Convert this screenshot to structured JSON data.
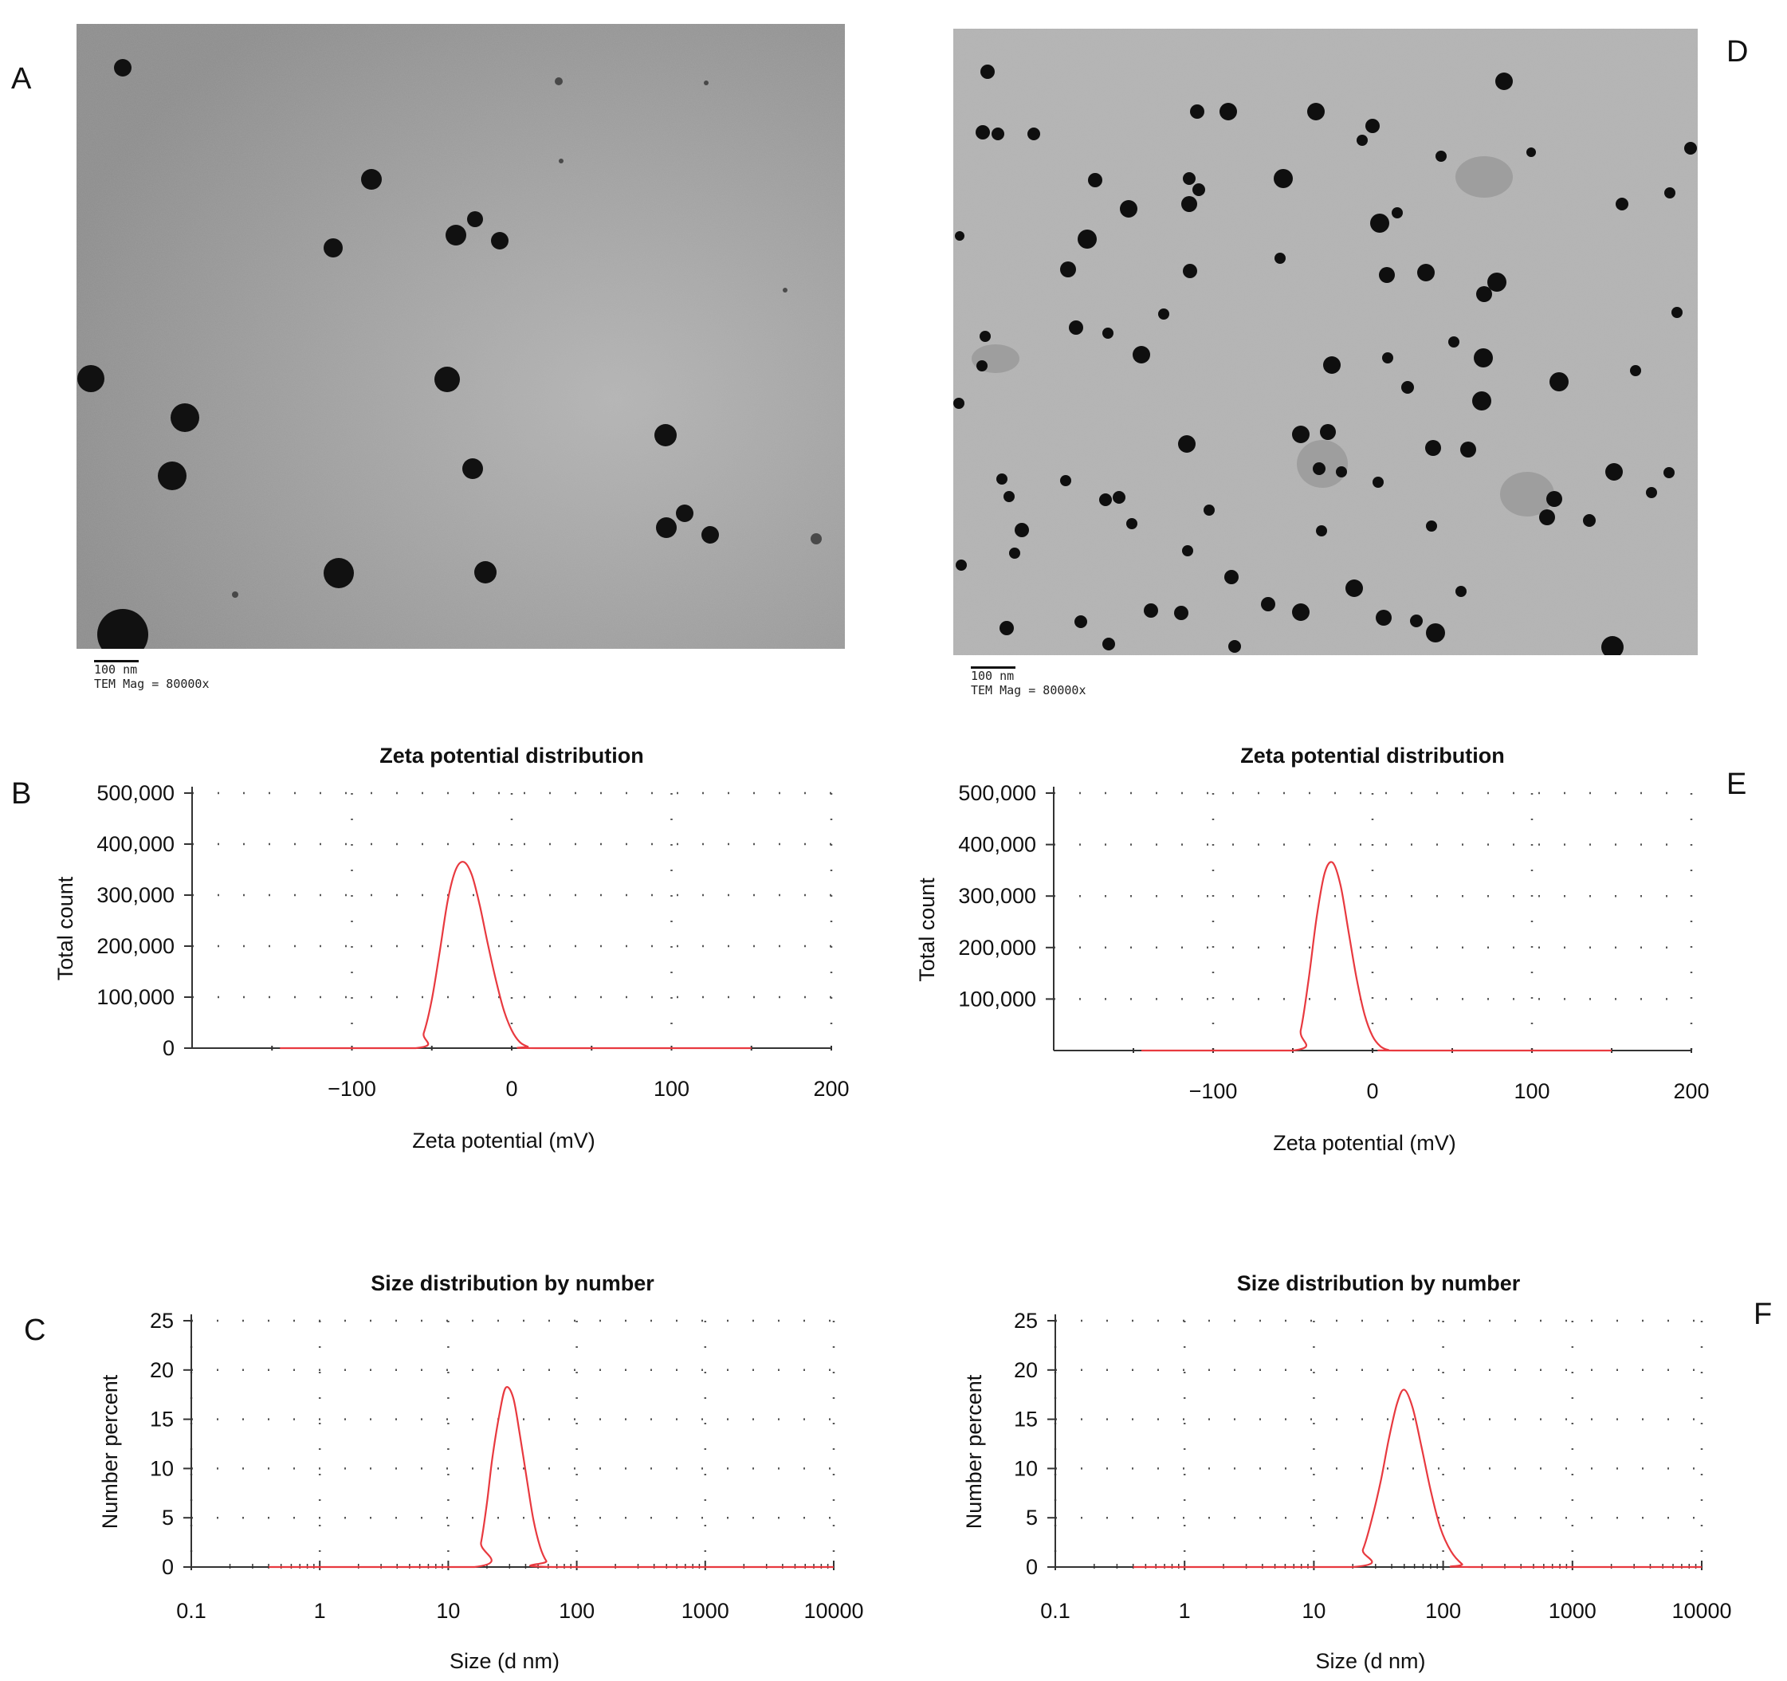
{
  "panels": {
    "A": {
      "letter": "A",
      "scalebar": "100 nm",
      "mag": "TEM Mag =  80000x"
    },
    "D": {
      "letter": "D",
      "scalebar": "100 nm",
      "mag": "TEM Mag =  80000x"
    },
    "B": {
      "letter": "B"
    },
    "E": {
      "letter": "E"
    },
    "C": {
      "letter": "C"
    },
    "F": {
      "letter": "F"
    }
  },
  "colors": {
    "curve": "#e8393f",
    "axis": "#333333",
    "grid": "#555555"
  },
  "chart_data": [
    {
      "id": "B",
      "type": "line",
      "title": "Zeta potential distribution",
      "xlabel": "Zeta potential (mV)",
      "ylabel": "Total count",
      "xlim": [
        -200,
        200
      ],
      "ylim": [
        0,
        500000
      ],
      "xticks": [
        -100,
        0,
        100,
        200
      ],
      "xtick_labels": [
        "−100",
        "0",
        "100",
        "200"
      ],
      "yticks": [
        0,
        100000,
        200000,
        300000,
        400000,
        500000
      ],
      "ytick_labels": [
        "0",
        "100,000",
        "200,000",
        "300,000",
        "400,000",
        "500,000"
      ],
      "grid": true,
      "series": [
        {
          "x": [
            -145,
            -60,
            -55,
            -50,
            -45,
            -40,
            -35,
            -30,
            -25,
            -20,
            -15,
            -10,
            -5,
            0,
            5,
            10,
            15,
            150
          ],
          "y": [
            0,
            0,
            30000,
            95000,
            190000,
            290000,
            350000,
            365000,
            340000,
            280000,
            205000,
            135000,
            75000,
            35000,
            12000,
            3000,
            0,
            0
          ]
        }
      ]
    },
    {
      "id": "E",
      "type": "line",
      "title": "Zeta potential distribution",
      "xlabel": "Zeta potential (mV)",
      "ylabel": "Total count",
      "xlim": [
        -200,
        200
      ],
      "ylim": [
        0,
        500000
      ],
      "xticks": [
        -100,
        0,
        100,
        200
      ],
      "xtick_labels": [
        "−100",
        "0",
        "100",
        "200"
      ],
      "yticks": [
        100000,
        200000,
        300000,
        400000,
        500000
      ],
      "ytick_labels": [
        "100,000",
        "200,000",
        "300,000",
        "400,000",
        "500,000"
      ],
      "grid": true,
      "series": [
        {
          "x": [
            -145,
            -50,
            -45,
            -40,
            -35,
            -30,
            -25,
            -20,
            -15,
            -10,
            -5,
            0,
            5,
            10,
            15,
            150
          ],
          "y": [
            0,
            0,
            40000,
            140000,
            260000,
            345000,
            365000,
            320000,
            230000,
            140000,
            70000,
            28000,
            8000,
            1000,
            0,
            0
          ]
        }
      ]
    },
    {
      "id": "C",
      "type": "line",
      "title": "Size distribution by number",
      "xlabel": "Size (d nm)",
      "ylabel": "Number percent",
      "xscale": "log",
      "xlim": [
        0.1,
        10000
      ],
      "ylim": [
        0,
        25
      ],
      "xticks": [
        0.1,
        1,
        10,
        100,
        1000,
        10000
      ],
      "xtick_labels": [
        "0.1",
        "1",
        "10",
        "100",
        "1000",
        "10000"
      ],
      "yticks": [
        0,
        5,
        10,
        15,
        20,
        25
      ],
      "ytick_labels": [
        "0",
        "5",
        "10",
        "15",
        "20",
        "25"
      ],
      "grid": true,
      "series": [
        {
          "x": [
            0.4,
            16,
            18,
            20,
            22,
            25,
            28,
            32,
            36,
            41,
            46,
            52,
            58,
            65,
            10000
          ],
          "y": [
            0,
            0,
            2.5,
            6.5,
            11,
            15.5,
            18.2,
            17.2,
            13.5,
            8.8,
            4.8,
            2.0,
            0.6,
            0,
            0
          ]
        }
      ]
    },
    {
      "id": "F",
      "type": "line",
      "title": "Size distribution by number",
      "xlabel": "Size (d nm)",
      "ylabel": "Number percent",
      "xscale": "log",
      "xlim": [
        0.1,
        10000
      ],
      "ylim": [
        0,
        25
      ],
      "xticks": [
        0.1,
        1,
        10,
        100,
        1000,
        10000
      ],
      "xtick_labels": [
        "0.1",
        "1",
        "10",
        "100",
        "1000",
        "10000"
      ],
      "yticks": [
        0,
        5,
        10,
        15,
        20,
        25
      ],
      "ytick_labels": [
        "0",
        "5",
        "10",
        "15",
        "20",
        "25"
      ],
      "grid": true,
      "series": [
        {
          "x": [
            0.4,
            20,
            24,
            28,
            33,
            38,
            44,
            50,
            58,
            68,
            80,
            95,
            115,
            140,
            160,
            10000
          ],
          "y": [
            0,
            0,
            1.8,
            4.8,
            8.8,
            13,
            16.6,
            18.0,
            16.2,
            12.2,
            7.8,
            4.0,
            1.6,
            0.3,
            0,
            0
          ]
        }
      ]
    }
  ]
}
